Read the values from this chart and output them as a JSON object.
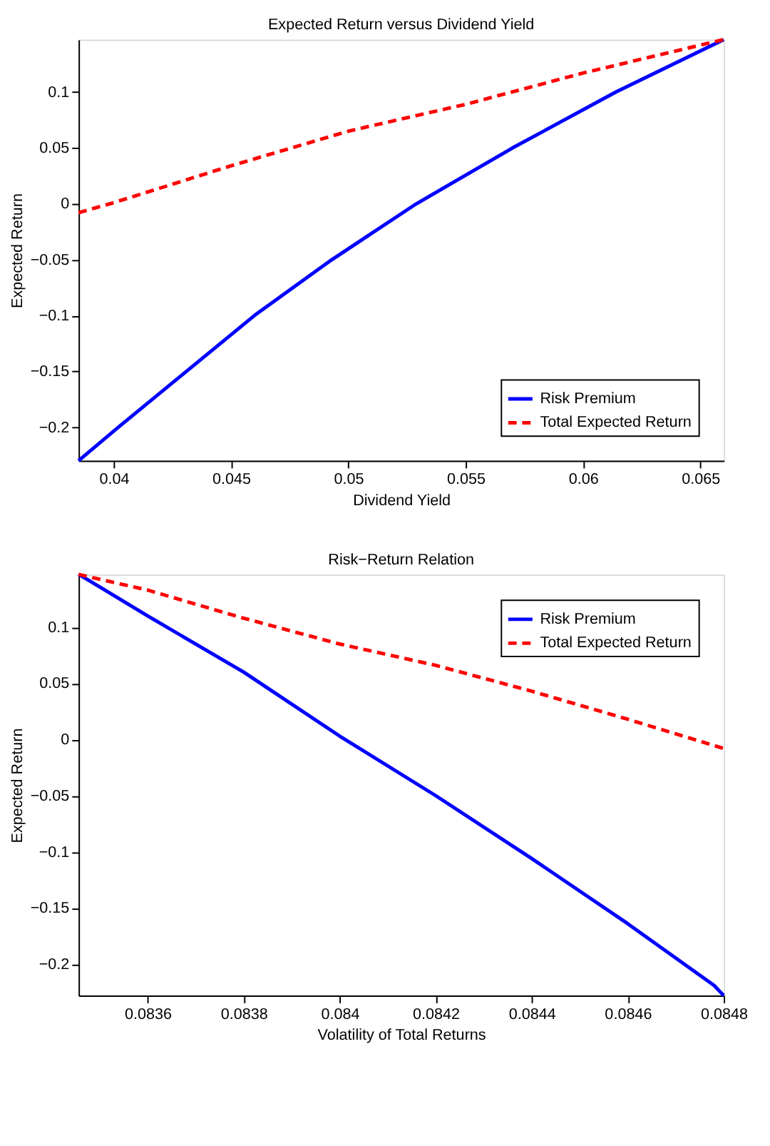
{
  "chart_data": [
    {
      "type": "line",
      "title": "Expected Return versus Dividend Yield",
      "xlabel": "Dividend Yield",
      "ylabel": "Expected Return",
      "xlim": [
        0.0385,
        0.066
      ],
      "ylim": [
        -0.23,
        0.147
      ],
      "xticks": [
        0.04,
        0.045,
        0.05,
        0.055,
        0.06,
        0.065
      ],
      "yticks": [
        {
          "value": -0.2,
          "label": "−0.2"
        },
        {
          "value": -0.15,
          "label": "−0.15"
        },
        {
          "value": -0.1,
          "label": "−0.1"
        },
        {
          "value": -0.05,
          "label": "−0.05"
        },
        0,
        0.05,
        0.1
      ],
      "grid": false,
      "legend": "bottom right",
      "marker": "none",
      "series": [
        {
          "name": "Risk Premium",
          "color": "#0000ff",
          "line_style": "solid",
          "x": [
            0.0385,
            0.0402,
            0.0431,
            0.046,
            0.0493,
            0.0529,
            0.057,
            0.0614,
            0.066
          ],
          "values": [
            -0.23,
            -0.2,
            -0.15,
            -0.1,
            -0.05,
            0,
            0.05,
            0.1,
            0.147
          ]
        },
        {
          "name": "Total Expected Return",
          "color": "#ff0000",
          "line_style": "dashed",
          "x": [
            0.0385,
            0.04,
            0.045,
            0.05,
            0.055,
            0.06,
            0.065,
            0.066
          ],
          "values": [
            -0.008,
            0.001,
            0.034,
            0.065,
            0.089,
            0.117,
            0.142,
            0.147
          ]
        }
      ]
    },
    {
      "type": "line",
      "title": "Risk−Return Relation",
      "xlabel": "Volatility of Total Returns",
      "ylabel": "Expected Return",
      "xlim": [
        0.083456,
        0.0848
      ],
      "ylim": [
        -0.228,
        0.147
      ],
      "xticks": [
        0.0836,
        0.0838,
        0.084,
        0.0842,
        0.0844,
        0.0846,
        0.0848
      ],
      "yticks": [
        {
          "value": -0.2,
          "label": "−0.2"
        },
        {
          "value": -0.15,
          "label": "−0.15"
        },
        {
          "value": -0.1,
          "label": "−0.1"
        },
        {
          "value": -0.05,
          "label": "−0.05"
        },
        0,
        0.05,
        0.1
      ],
      "grid": false,
      "legend": "top right",
      "marker": "none",
      "series": [
        {
          "name": "Risk Premium",
          "color": "#0000ff",
          "line_style": "solid",
          "x": [
            0.083456,
            0.08348,
            0.0836,
            0.0838,
            0.084,
            0.0842,
            0.0844,
            0.0846,
            0.08478,
            0.0848
          ],
          "values": [
            0.147,
            0.141,
            0.11,
            0.06,
            0.003,
            -0.05,
            -0.106,
            -0.164,
            -0.219,
            -0.228
          ]
        },
        {
          "name": "Total Expected Return",
          "color": "#ff0000",
          "line_style": "dashed",
          "x": [
            0.083456,
            0.0836,
            0.0838,
            0.084,
            0.0842,
            0.0844,
            0.0846,
            0.0848
          ],
          "values": [
            0.147,
            0.133,
            0.108,
            0.085,
            0.066,
            0.043,
            0.018,
            -0.008
          ]
        }
      ]
    }
  ]
}
